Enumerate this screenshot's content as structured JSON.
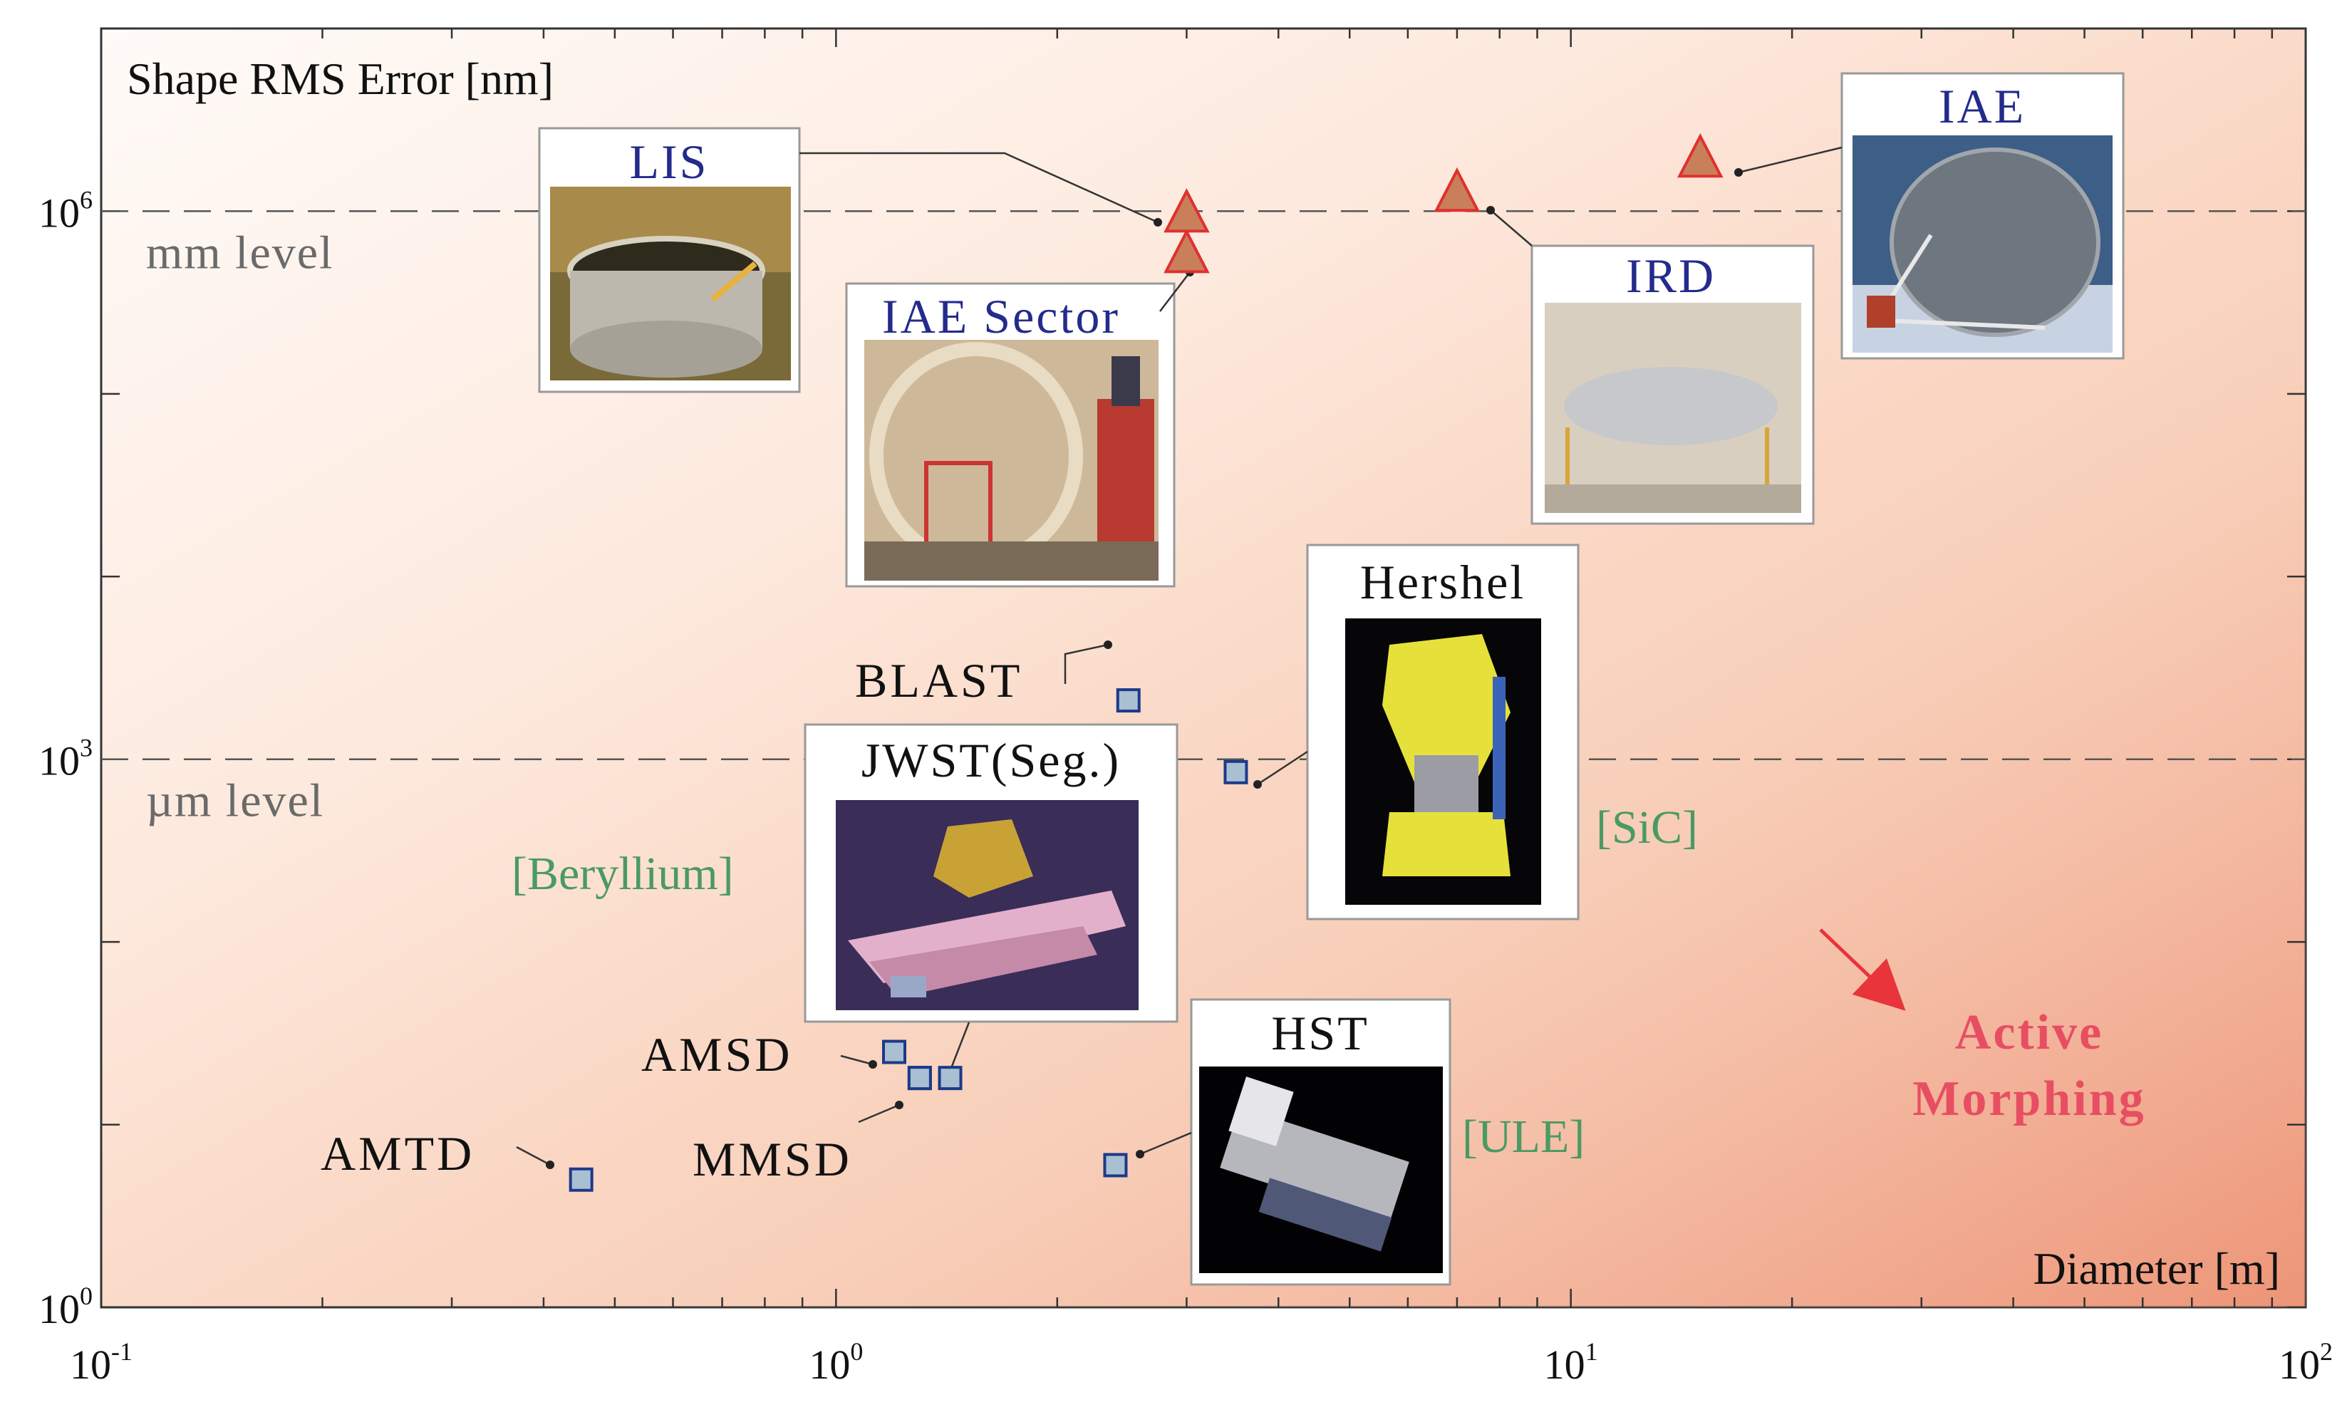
{
  "chart_data": {
    "type": "scatter",
    "xlabel": "Diameter [m]",
    "ylabel": "Shape RMS Error [nm]",
    "x_scale": "log",
    "y_scale": "log",
    "xlim": [
      0.1,
      100
    ],
    "ylim": [
      1,
      10000000
    ],
    "x_ticks": [
      {
        "value": 0.1,
        "base": "10",
        "exp": "-1"
      },
      {
        "value": 1,
        "base": "10",
        "exp": "0"
      },
      {
        "value": 10,
        "base": "10",
        "exp": "1"
      },
      {
        "value": 100,
        "base": "10",
        "exp": "2"
      }
    ],
    "y_ticks": [
      {
        "value": 1,
        "base": "10",
        "exp": "0"
      },
      {
        "value": 1000,
        "base": "10",
        "exp": "3"
      },
      {
        "value": 1000000,
        "base": "10",
        "exp": "6"
      }
    ],
    "reference_lines": [
      {
        "y": 1000000,
        "label": "mm level",
        "style": "dashed"
      },
      {
        "y": 1000,
        "label": "µm level",
        "style": "dashed"
      }
    ],
    "series": [
      {
        "marker": "triangle",
        "color": "#c9805a",
        "edge_color": "#e03030",
        "points": [
          {
            "name": "LIS",
            "x": 3.0,
            "y": 1000000
          },
          {
            "name": "IAE Sector",
            "x": 3.0,
            "y": 600000
          },
          {
            "name": "IRD",
            "x": 7.0,
            "y": 1300000
          },
          {
            "name": "IAE",
            "x": 15.0,
            "y": 2000000
          }
        ]
      },
      {
        "marker": "square",
        "color": "#a9bfd2",
        "edge_color": "#1c3a8a",
        "points": [
          {
            "name": "BLAST",
            "x": 2.5,
            "y": 2100
          },
          {
            "name": "Hershel",
            "x": 3.5,
            "y": 850
          },
          {
            "name": "JWST(Seg.)",
            "x": 1.3,
            "y": 18
          },
          {
            "name": "JWST(Seg.)",
            "x": 1.43,
            "y": 18
          },
          {
            "name": "AMSD",
            "x": 1.2,
            "y": 25
          },
          {
            "name": "MMSD",
            "x": 1.3,
            "y": 18
          },
          {
            "name": "AMTD",
            "x": 0.45,
            "y": 5
          },
          {
            "name": "HST",
            "x": 2.4,
            "y": 6
          }
        ]
      }
    ],
    "labels": {
      "blast": "BLAST",
      "amsd": "AMSD",
      "mmsd": "MMSD",
      "amtd": "AMTD"
    },
    "cards": {
      "lis": "LIS",
      "iae_sector": "IAE Sector",
      "ird": "IRD",
      "iae": "IAE",
      "hershel": "Hershel",
      "jwst": "JWST(Seg.)",
      "hst": "HST"
    },
    "materials": {
      "beryllium": "[Beryllium]",
      "sic": "[SiC]",
      "ule": "[ULE]"
    },
    "annotation": {
      "line1": "Active",
      "line2": "Morphing"
    }
  }
}
